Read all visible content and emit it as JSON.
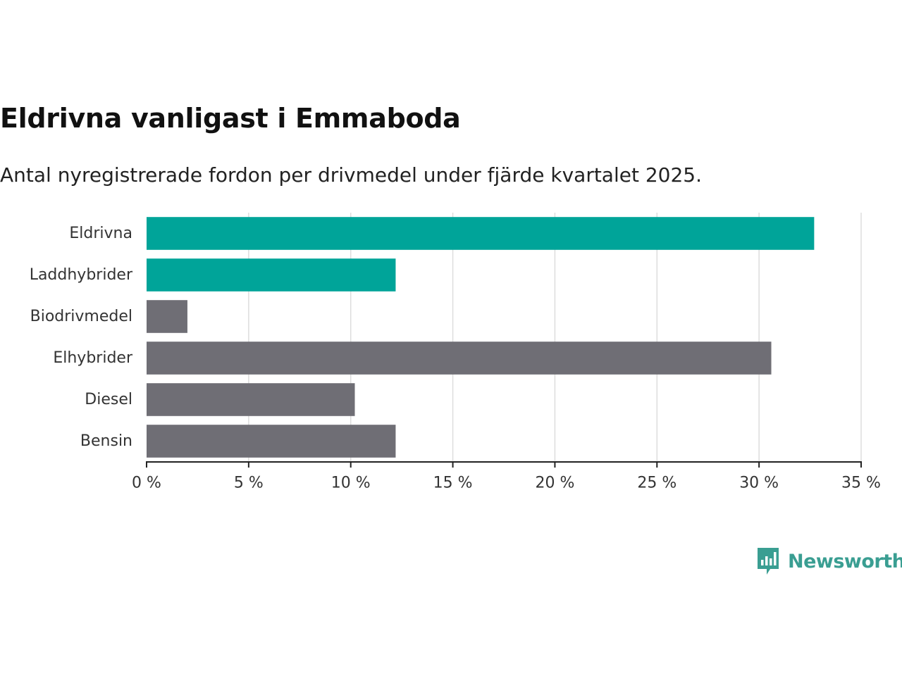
{
  "chart_data": {
    "type": "bar",
    "orientation": "horizontal",
    "title": "Eldrivna vanligast i Emmaboda",
    "subtitle": "Antal nyregistrerade fordon per drivmedel under fjärde kvartalet 2025.",
    "categories": [
      "Eldrivna",
      "Laddhybrider",
      "Biodrivmedel",
      "Elhybrider",
      "Diesel",
      "Bensin"
    ],
    "values": [
      32.7,
      12.2,
      2.0,
      30.6,
      10.2,
      12.2
    ],
    "bar_colors": [
      "#00a499",
      "#00a499",
      "#6f6e75",
      "#6f6e75",
      "#6f6e75",
      "#6f6e75"
    ],
    "xlim": [
      0,
      35
    ],
    "xticks": [
      0,
      5,
      10,
      15,
      20,
      25,
      30,
      35
    ],
    "xtick_labels": [
      "0 %",
      "5 %",
      "10 %",
      "15 %",
      "20 %",
      "25 %",
      "30 %",
      "35 %"
    ],
    "xlabel": "",
    "ylabel": "",
    "grid": true,
    "grid_color": "#dddddd",
    "axis_color": "#222222"
  },
  "branding": {
    "logo_text": "Newsworthy",
    "logo_color": "#3a9e92"
  }
}
